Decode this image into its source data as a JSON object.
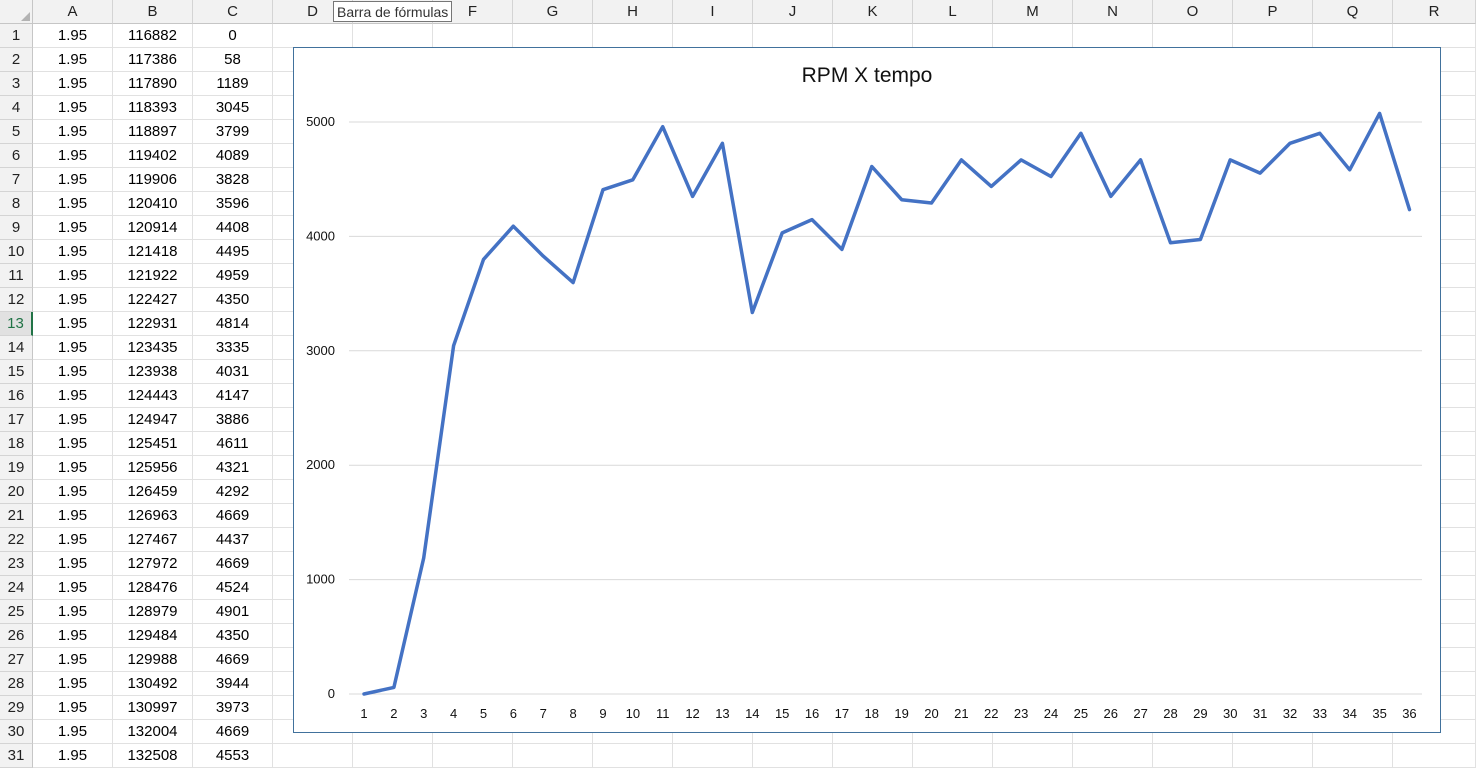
{
  "tooltip": "Barra de fórmulas",
  "columns": [
    "A",
    "B",
    "C",
    "D",
    "E",
    "F",
    "G",
    "H",
    "I",
    "J",
    "K",
    "L",
    "M",
    "N",
    "O",
    "P",
    "Q",
    "R"
  ],
  "selected_row": 13,
  "rows": [
    {
      "n": "1",
      "a": "1.95",
      "b": "116882",
      "c": "0"
    },
    {
      "n": "2",
      "a": "1.95",
      "b": "117386",
      "c": "58"
    },
    {
      "n": "3",
      "a": "1.95",
      "b": "117890",
      "c": "1189"
    },
    {
      "n": "4",
      "a": "1.95",
      "b": "118393",
      "c": "3045"
    },
    {
      "n": "5",
      "a": "1.95",
      "b": "118897",
      "c": "3799"
    },
    {
      "n": "6",
      "a": "1.95",
      "b": "119402",
      "c": "4089"
    },
    {
      "n": "7",
      "a": "1.95",
      "b": "119906",
      "c": "3828"
    },
    {
      "n": "8",
      "a": "1.95",
      "b": "120410",
      "c": "3596"
    },
    {
      "n": "9",
      "a": "1.95",
      "b": "120914",
      "c": "4408"
    },
    {
      "n": "10",
      "a": "1.95",
      "b": "121418",
      "c": "4495"
    },
    {
      "n": "11",
      "a": "1.95",
      "b": "121922",
      "c": "4959"
    },
    {
      "n": "12",
      "a": "1.95",
      "b": "122427",
      "c": "4350"
    },
    {
      "n": "13",
      "a": "1.95",
      "b": "122931",
      "c": "4814"
    },
    {
      "n": "14",
      "a": "1.95",
      "b": "123435",
      "c": "3335"
    },
    {
      "n": "15",
      "a": "1.95",
      "b": "123938",
      "c": "4031"
    },
    {
      "n": "16",
      "a": "1.95",
      "b": "124443",
      "c": "4147"
    },
    {
      "n": "17",
      "a": "1.95",
      "b": "124947",
      "c": "3886"
    },
    {
      "n": "18",
      "a": "1.95",
      "b": "125451",
      "c": "4611"
    },
    {
      "n": "19",
      "a": "1.95",
      "b": "125956",
      "c": "4321"
    },
    {
      "n": "20",
      "a": "1.95",
      "b": "126459",
      "c": "4292"
    },
    {
      "n": "21",
      "a": "1.95",
      "b": "126963",
      "c": "4669"
    },
    {
      "n": "22",
      "a": "1.95",
      "b": "127467",
      "c": "4437"
    },
    {
      "n": "23",
      "a": "1.95",
      "b": "127972",
      "c": "4669"
    },
    {
      "n": "24",
      "a": "1.95",
      "b": "128476",
      "c": "4524"
    },
    {
      "n": "25",
      "a": "1.95",
      "b": "128979",
      "c": "4901"
    },
    {
      "n": "26",
      "a": "1.95",
      "b": "129484",
      "c": "4350"
    },
    {
      "n": "27",
      "a": "1.95",
      "b": "129988",
      "c": "4669"
    },
    {
      "n": "28",
      "a": "1.95",
      "b": "130492",
      "c": "3944"
    },
    {
      "n": "29",
      "a": "1.95",
      "b": "130997",
      "c": "3973"
    },
    {
      "n": "30",
      "a": "1.95",
      "b": "132004",
      "c": "4669"
    },
    {
      "n": "31",
      "a": "1.95",
      "b": "132508",
      "c": "4553"
    }
  ],
  "chart_data": {
    "type": "line",
    "title": "RPM X tempo",
    "xlabel": "",
    "ylabel": "",
    "categories": [
      "1",
      "2",
      "3",
      "4",
      "5",
      "6",
      "7",
      "8",
      "9",
      "10",
      "11",
      "12",
      "13",
      "14",
      "15",
      "16",
      "17",
      "18",
      "19",
      "20",
      "21",
      "22",
      "23",
      "24",
      "25",
      "26",
      "27",
      "28",
      "29",
      "30",
      "31",
      "32",
      "33",
      "34",
      "35",
      "36"
    ],
    "series": [
      {
        "values": [
          0,
          58,
          1189,
          3045,
          3799,
          4089,
          3828,
          3596,
          4408,
          4495,
          4959,
          4350,
          4814,
          3335,
          4031,
          4147,
          3886,
          4611,
          4321,
          4292,
          4669,
          4437,
          4669,
          4524,
          4901,
          4350,
          4669,
          3944,
          3973,
          4669,
          4553,
          4814,
          4901,
          4582,
          5075,
          4234
        ]
      }
    ],
    "yticks": [
      "0",
      "1000",
      "2000",
      "3000",
      "4000",
      "5000"
    ],
    "ylim": [
      0,
      5000
    ],
    "grid": true,
    "line_color": "#4472c4",
    "gridline_color": "#d9d9d9"
  }
}
